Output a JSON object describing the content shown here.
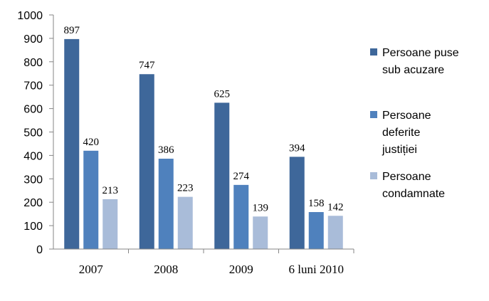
{
  "chart_data": {
    "type": "bar",
    "categories": [
      "2007",
      "2008",
      "2009",
      "6 luni 2010"
    ],
    "series": [
      {
        "name": "Persoane puse sub acuzare",
        "values": [
          897,
          747,
          625,
          394
        ],
        "color": "#3e679a"
      },
      {
        "name": "Persoane deferite justiției",
        "values": [
          420,
          386,
          274,
          158
        ],
        "color": "#4f81bd"
      },
      {
        "name": "Persoane condamnate",
        "values": [
          213,
          223,
          139,
          142
        ],
        "color": "#a9bcd9"
      }
    ],
    "legend": [
      {
        "lines": [
          "Persoane puse",
          "sub acuzare"
        ]
      },
      {
        "lines": [
          "Persoane",
          "deferite",
          "justiției"
        ]
      },
      {
        "lines": [
          "Persoane",
          "condamnate"
        ]
      }
    ],
    "yticks": [
      "0",
      "100",
      "200",
      "300",
      "400",
      "500",
      "600",
      "700",
      "800",
      "900",
      "1000"
    ],
    "ylim": [
      0,
      1000
    ],
    "grid": false,
    "legend_position": "right",
    "title": "",
    "xlabel": "",
    "ylabel": ""
  }
}
